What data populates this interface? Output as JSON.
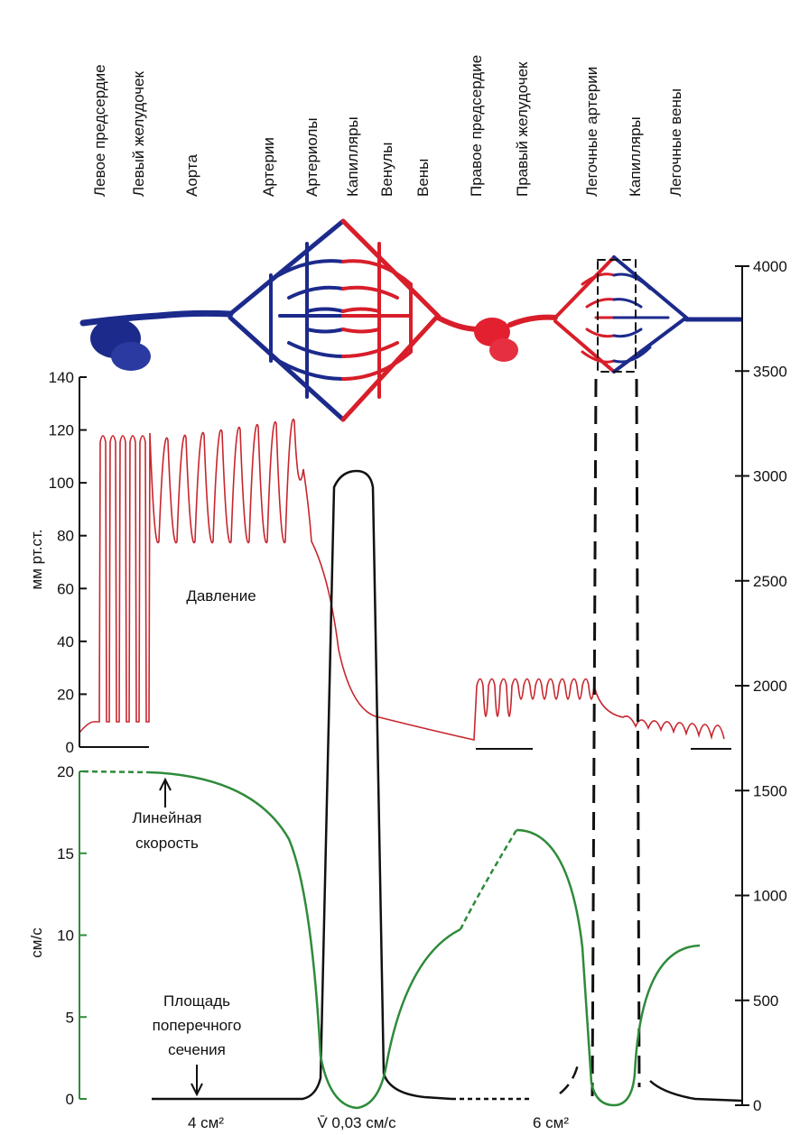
{
  "column_labels": [
    "Левое предсердие",
    "Левый желудочек",
    "Аорта",
    "Артерии",
    "Артериолы",
    "Капилляры",
    "Венулы",
    "Вены",
    "Правое предсердие",
    "Правый желудочек",
    "Легочные артерии",
    "Капилляры",
    "Легочные вены"
  ],
  "pressure_axis": {
    "label": "мм рт.ст.",
    "ticks": [
      "0",
      "20",
      "40",
      "60",
      "80",
      "100",
      "120",
      "140"
    ]
  },
  "velocity_axis": {
    "label": "см/с",
    "ticks": [
      "0",
      "5",
      "10",
      "15",
      "20"
    ]
  },
  "area_axis": {
    "ticks": [
      "0",
      "500",
      "1000",
      "1500",
      "2000",
      "2500",
      "3000",
      "3500",
      "4000"
    ]
  },
  "annotations": {
    "pressure": "Давление",
    "velocity": [
      "Линейная",
      "скорость"
    ],
    "area": [
      "Площадь",
      "поперечного",
      "сечения"
    ],
    "bottom": [
      "4 см²",
      "V̄ 0,03 см/с",
      "6 см²"
    ]
  }
}
